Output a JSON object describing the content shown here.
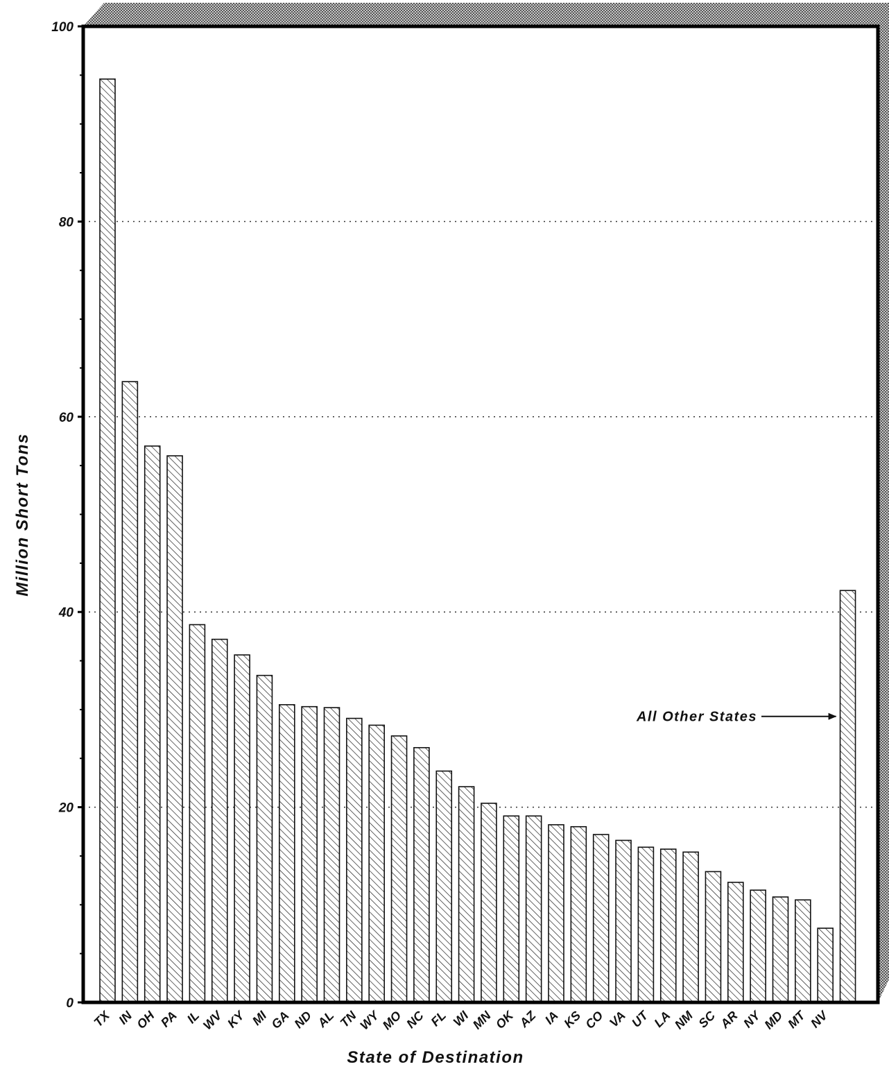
{
  "chart_data": {
    "type": "bar",
    "title": "",
    "xlabel": "State of Destination",
    "ylabel": "Million Short Tons",
    "ylim": [
      0,
      100
    ],
    "yticks": [
      0,
      20,
      40,
      60,
      80,
      100
    ],
    "grid": true,
    "categories": [
      "TX",
      "IN",
      "OH",
      "PA",
      "IL",
      "WV",
      "KY",
      "MI",
      "GA",
      "ND",
      "AL",
      "TN",
      "WY",
      "MO",
      "NC",
      "FL",
      "WI",
      "MN",
      "OK",
      "AZ",
      "IA",
      "KS",
      "CO",
      "VA",
      "UT",
      "LA",
      "NM",
      "SC",
      "AR",
      "NY",
      "MD",
      "MT",
      "NV",
      ""
    ],
    "values": [
      94.6,
      63.6,
      57.0,
      56.0,
      38.7,
      37.2,
      35.6,
      33.5,
      30.5,
      30.3,
      30.2,
      29.1,
      28.4,
      27.3,
      26.1,
      23.7,
      22.1,
      20.4,
      19.1,
      19.1,
      18.2,
      18.0,
      17.2,
      16.6,
      15.9,
      15.7,
      15.4,
      13.4,
      12.3,
      11.5,
      10.8,
      10.5,
      7.6,
      42.2
    ],
    "annotations": [
      {
        "text": "All Other States",
        "target_index": 33,
        "value": 29.3
      }
    ],
    "colors": {
      "bar_fill": "#ffffff",
      "bar_hatch": "#222222",
      "frame": "#000000",
      "shadow": "#9a9a9a",
      "background": "#ffffff"
    }
  }
}
